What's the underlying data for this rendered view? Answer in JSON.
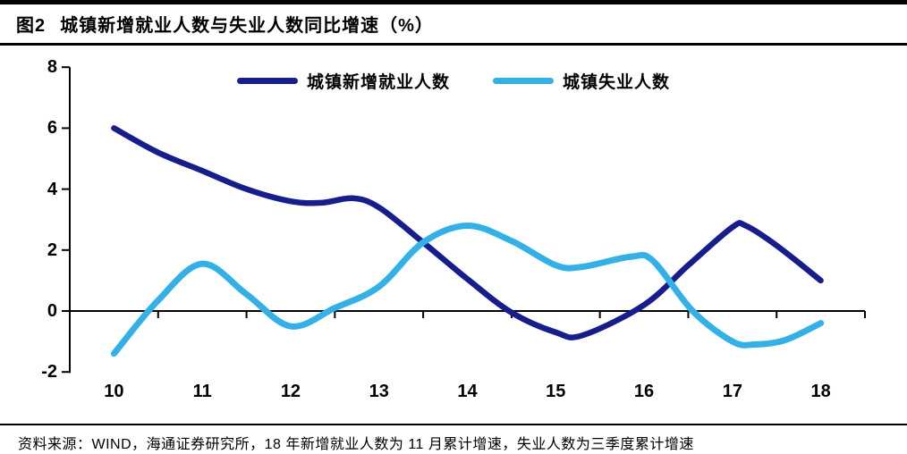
{
  "header": {
    "tag": "图2",
    "title": "城镇新增就业人数与失业人数同比增速（%）"
  },
  "source_note": "资料来源：WIND，海通证券研究所，18 年新增就业人数为 11 月累计增速，失业人数为三季度累计增速",
  "colors": {
    "axis": "#000000",
    "new_employment_line": "#171E8C",
    "unemployment_line": "#33B1E7"
  },
  "chart_data": {
    "type": "line",
    "title": "城镇新增就业人数与失业人数同比增速（%）",
    "xlabel": "",
    "ylabel": "",
    "x_ticks": [
      10,
      11,
      12,
      13,
      14,
      15,
      16,
      17,
      18
    ],
    "y_ticks": [
      8,
      6,
      4,
      2,
      0,
      -2
    ],
    "xlim": [
      9.5,
      18.5
    ],
    "ylim": [
      -2,
      8
    ],
    "grid": false,
    "legend_position": "top-center",
    "series": [
      {
        "name": "城镇新增就业人数",
        "color": "#171E8C",
        "points": [
          [
            10,
            6.0
          ],
          [
            10.5,
            5.2
          ],
          [
            11,
            4.6
          ],
          [
            11.5,
            4.0
          ],
          [
            12,
            3.6
          ],
          [
            12.35,
            3.55
          ],
          [
            12.7,
            3.7
          ],
          [
            13,
            3.4
          ],
          [
            13.5,
            2.25
          ],
          [
            14,
            1.05
          ],
          [
            14.5,
            -0.05
          ],
          [
            15,
            -0.7
          ],
          [
            15.3,
            -0.8
          ],
          [
            16,
            0.2
          ],
          [
            16.5,
            1.5
          ],
          [
            17,
            2.75
          ],
          [
            17.15,
            2.8
          ],
          [
            17.5,
            2.15
          ],
          [
            18,
            1.0
          ]
        ]
      },
      {
        "name": "城镇失业人数",
        "color": "#33B1E7",
        "points": [
          [
            10,
            -1.4
          ],
          [
            10.5,
            0.35
          ],
          [
            11,
            1.55
          ],
          [
            11.5,
            0.55
          ],
          [
            12,
            -0.5
          ],
          [
            12.5,
            0.1
          ],
          [
            13,
            0.8
          ],
          [
            13.5,
            2.25
          ],
          [
            14,
            2.8
          ],
          [
            14.5,
            2.3
          ],
          [
            15,
            1.5
          ],
          [
            15.3,
            1.45
          ],
          [
            15.85,
            1.78
          ],
          [
            16.1,
            1.65
          ],
          [
            16.55,
            0
          ],
          [
            17,
            -1.0
          ],
          [
            17.25,
            -1.1
          ],
          [
            17.6,
            -0.95
          ],
          [
            18,
            -0.4
          ]
        ]
      }
    ]
  }
}
